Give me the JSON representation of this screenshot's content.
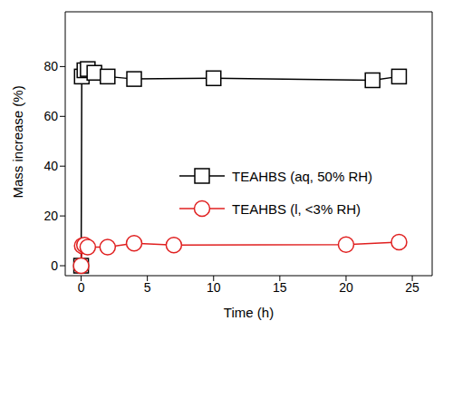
{
  "chart_data": {
    "type": "line",
    "x_label": "Time (h)",
    "y_label": "Mass increase (%)",
    "xlim": [
      -1.2,
      26.5
    ],
    "ylim": [
      -4,
      102
    ],
    "xticks": [
      0,
      5,
      10,
      15,
      20,
      25
    ],
    "yticks": [
      0,
      20,
      40,
      60,
      80
    ],
    "grid": false,
    "legend": "right",
    "series": [
      {
        "name": "TEAHBS (aq, 50% RH)",
        "color": "#000000",
        "marker": "square",
        "line_style": "solid",
        "x": [
          0,
          0.05,
          0.25,
          0.5,
          1,
          2,
          4,
          10,
          22,
          24
        ],
        "values": [
          0,
          76,
          78.5,
          79,
          77.5,
          76,
          75,
          75.3,
          74.5,
          76
        ]
      },
      {
        "name": "TEAHBS (l, <3% RH)",
        "color": "#e02020",
        "marker": "circle",
        "line_style": "solid",
        "x": [
          0,
          0.08,
          0.25,
          0.5,
          2,
          4,
          7,
          20,
          24
        ],
        "values": [
          0,
          8,
          8.3,
          7.5,
          7.5,
          9,
          8.3,
          8.5,
          9.5
        ]
      }
    ]
  }
}
